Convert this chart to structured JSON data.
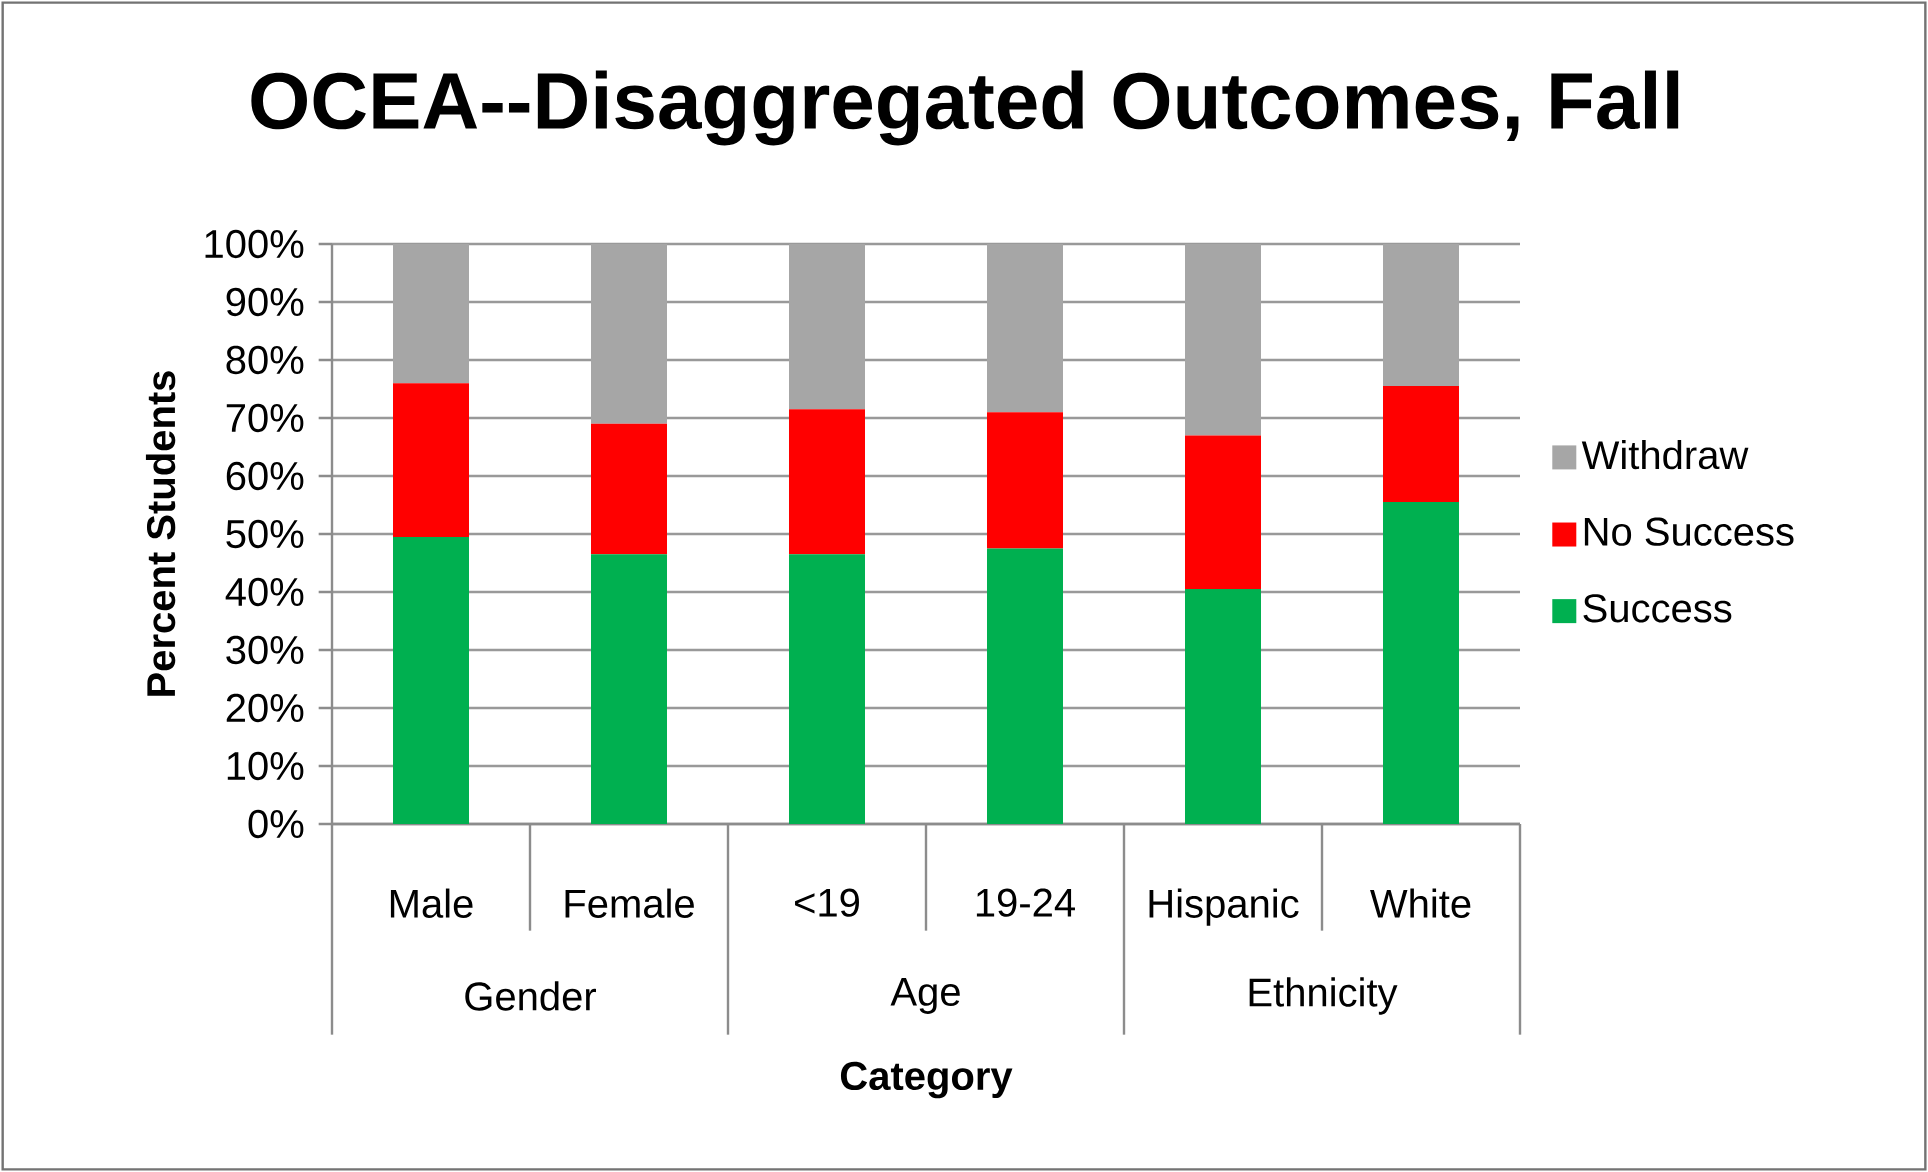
{
  "chart_data": {
    "type": "bar",
    "title": "OCEA--Disaggregated Outcomes, Fall",
    "xlabel": "Category",
    "ylabel": "Percent Students",
    "categories": [
      "Male",
      "Female",
      "<19",
      "19-24",
      "Hispanic",
      "White"
    ],
    "annotations": [
      "Gender",
      "Age",
      "Ethnicity"
    ],
    "stacked": true,
    "grid": "y",
    "legend": "right",
    "ylim": [
      0,
      100
    ],
    "yticks": [
      {
        "value": 0,
        "label": "0%"
      },
      {
        "value": 10,
        "label": "10%"
      },
      {
        "value": 20,
        "label": "20%"
      },
      {
        "value": 30,
        "label": "30%"
      },
      {
        "value": 40,
        "label": "40%"
      },
      {
        "value": 50,
        "label": "50%"
      },
      {
        "value": 60,
        "label": "60%"
      },
      {
        "value": 70,
        "label": "70%"
      },
      {
        "value": 80,
        "label": "80%"
      },
      {
        "value": 90,
        "label": "90%"
      },
      {
        "value": 100,
        "label": "100%"
      }
    ],
    "series": [
      {
        "name": "Success",
        "color": "#00b050",
        "values": [
          49.5,
          46.5,
          46.5,
          47.5,
          40.5,
          55.5
        ]
      },
      {
        "name": "No Success",
        "color": "#ff0000",
        "values": [
          26.5,
          22.5,
          25,
          23.5,
          26.5,
          20
        ]
      },
      {
        "name": "Withdraw",
        "color": "#a6a6a6",
        "values": [
          24,
          31,
          28.5,
          29,
          33,
          24.5
        ]
      }
    ]
  }
}
